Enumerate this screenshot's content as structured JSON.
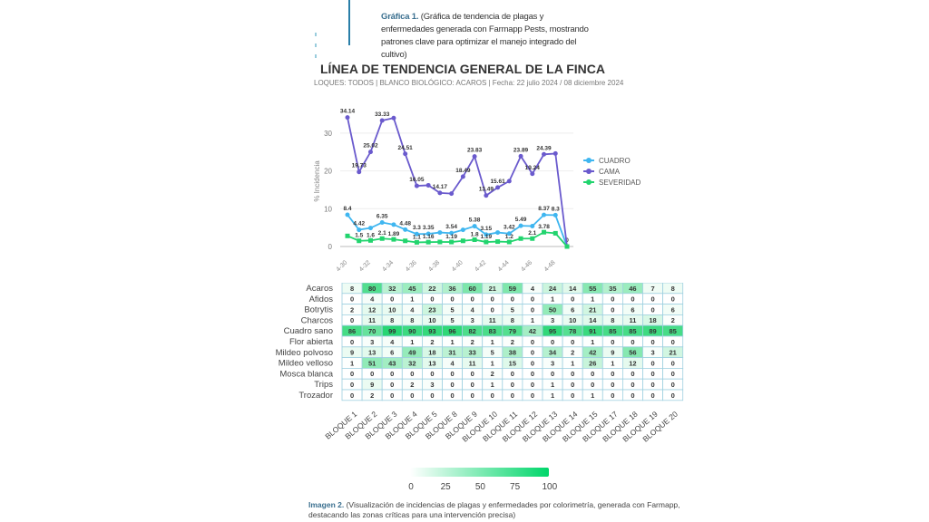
{
  "caption_top": {
    "label": "Gráfica 1.",
    "text": "(Gráfica de tendencia de plagas y enfermedades generada con Farmapp Pests, mostrando patrones clave para optimizar el manejo integrado del cultivo)"
  },
  "caption_bottom": {
    "label": "Imagen 2.",
    "text": "(Visualización de incidencias de plagas y enfermedades por colorimetría, generada con Farmapp, destacando las zonas críticas para una intervención precisa)"
  },
  "colors": {
    "cuadro": "#3fb6f0",
    "cama": "#6a5acd",
    "severidad": "#22d46e",
    "heat_max": "#00d66a"
  },
  "chart_data": [
    {
      "type": "line",
      "title": "LÍNEA DE TENDENCIA GENERAL DE LA FINCA",
      "subtitle": "LOQUES: TODOS | BLANCO BIOLÓGICO: ACAROS | Fecha: 22 julio 2024 / 08 diciembre 2024",
      "ylabel": "% Incidencia",
      "ylim": [
        0,
        35
      ],
      "yticks": [
        "0",
        "10",
        "20",
        "30"
      ],
      "x": [
        30,
        31,
        32,
        33,
        34,
        35,
        36,
        37,
        38,
        39,
        40,
        41,
        42,
        43,
        44,
        45,
        46,
        47,
        48,
        49
      ],
      "xtick_labels": [
        "4-30",
        "4-32",
        "4-34",
        "4-36",
        "4-38",
        "4-40",
        "4-42",
        "4-44",
        "4-46",
        "4-48"
      ],
      "legend_position": "right",
      "series": [
        {
          "name": "CUADRO",
          "values": [
            8.4,
            4.42,
            4.9,
            6.35,
            5.8,
            4.48,
            3.3,
            3.35,
            3.7,
            3.54,
            4.4,
            5.38,
            3.15,
            3.7,
            3.42,
            5.49,
            5.4,
            8.37,
            8.3,
            0
          ],
          "labels": [
            "8.4",
            "4.42",
            null,
            "6.35",
            null,
            "4.48",
            "3.3",
            "3.35",
            null,
            "3.54",
            null,
            "5.38",
            "3.15",
            null,
            "3.42",
            "5.49",
            null,
            "8.37",
            "8.3",
            "0"
          ]
        },
        {
          "name": "CAMA",
          "values": [
            34.14,
            19.73,
            25.02,
            33.33,
            34.0,
            24.51,
            16.05,
            16.2,
            14.17,
            14.0,
            18.49,
            23.83,
            13.49,
            15.61,
            17.3,
            23.89,
            19.24,
            24.39,
            24.6,
            0
          ],
          "labels": [
            "34.14",
            "19.73",
            "25.02",
            "33.33",
            null,
            "24.51",
            "16.05",
            null,
            "14.17",
            null,
            "18.49",
            "23.83",
            "13.49",
            "15.61",
            null,
            "23.89",
            "19.24",
            "24.39",
            null,
            null
          ]
        },
        {
          "name": "SEVERIDAD",
          "values": [
            2.8,
            1.5,
            1.6,
            2.1,
            1.89,
            1.5,
            1.1,
            1.16,
            1.2,
            1.19,
            1.5,
            1.8,
            1.19,
            1.3,
            1.2,
            2.1,
            2.1,
            3.78,
            3.5,
            0
          ],
          "labels": [
            null,
            "1.5",
            "1.6",
            "2.1",
            "1.89",
            null,
            "1.1",
            "1.16",
            null,
            "1.19",
            null,
            "1.8",
            "1.19",
            null,
            "1.2",
            null,
            "2.1",
            "3.78",
            null,
            null
          ]
        }
      ]
    },
    {
      "type": "heatmap",
      "rows": [
        "Acaros",
        "Afidos",
        "Botrytis",
        "Charcos",
        "Cuadro sano",
        "Flor abierta",
        "Mildeo polvoso",
        "Mildeo velloso",
        "Mosca blanca",
        "Trips",
        "Trozador"
      ],
      "columns": [
        "BLOQUE 1",
        "BLOQUE 2",
        "BLOQUE 3",
        "BLOQUE 4",
        "BLOQUE 5",
        "BLOQUE 8",
        "BLOQUE 9",
        "BLOQUE 10",
        "BLOQUE 11",
        "BLOQUE 12",
        "BLOQUE 13",
        "BLOQUE 14",
        "BLOQUE 15",
        "BLOQUE 17",
        "BLOQUE 18",
        "BLOQUE 19",
        "BLOQUE 20"
      ],
      "values": [
        [
          8,
          80,
          32,
          45,
          22,
          36,
          60,
          21,
          59,
          4,
          24,
          14,
          55,
          35,
          46,
          7,
          8
        ],
        [
          0,
          4,
          0,
          1,
          0,
          0,
          0,
          0,
          0,
          0,
          1,
          0,
          1,
          0,
          0,
          0,
          0
        ],
        [
          2,
          12,
          10,
          4,
          23,
          5,
          4,
          0,
          5,
          0,
          50,
          6,
          21,
          0,
          6,
          0,
          6
        ],
        [
          0,
          11,
          8,
          8,
          10,
          5,
          3,
          11,
          8,
          1,
          3,
          10,
          14,
          8,
          11,
          18,
          2
        ],
        [
          86,
          70,
          99,
          90,
          93,
          96,
          82,
          83,
          79,
          42,
          95,
          78,
          91,
          85,
          85,
          89,
          85
        ],
        [
          0,
          3,
          4,
          1,
          2,
          1,
          2,
          1,
          2,
          0,
          0,
          0,
          1,
          0,
          0,
          0,
          0
        ],
        [
          9,
          13,
          6,
          49,
          18,
          31,
          33,
          5,
          38,
          0,
          34,
          2,
          42,
          9,
          56,
          3,
          21
        ],
        [
          1,
          51,
          43,
          32,
          13,
          4,
          11,
          1,
          15,
          0,
          3,
          1,
          26,
          1,
          12,
          0,
          0
        ],
        [
          0,
          0,
          0,
          0,
          0,
          0,
          0,
          2,
          0,
          0,
          0,
          0,
          0,
          0,
          0,
          0,
          0
        ],
        [
          0,
          9,
          0,
          2,
          3,
          0,
          0,
          1,
          0,
          0,
          1,
          0,
          0,
          0,
          0,
          0,
          0
        ],
        [
          0,
          2,
          0,
          0,
          0,
          0,
          0,
          0,
          0,
          0,
          1,
          0,
          1,
          0,
          0,
          0,
          0
        ]
      ],
      "colorbar": {
        "range": [
          0,
          100
        ],
        "ticks": [
          "0",
          "25",
          "50",
          "75",
          "100"
        ]
      }
    }
  ]
}
